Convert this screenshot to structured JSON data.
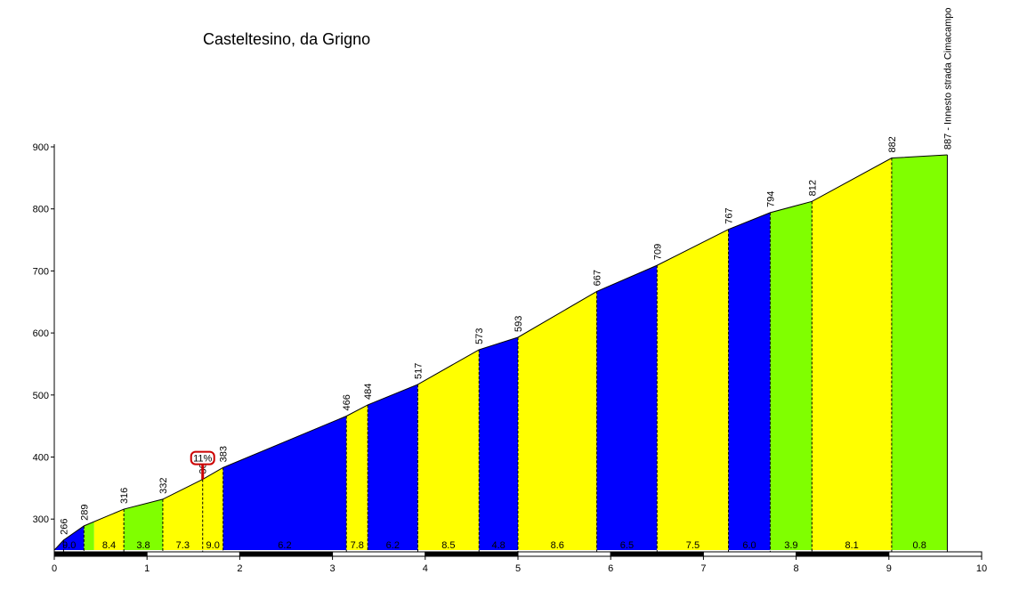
{
  "chart_data": {
    "type": "area",
    "title": "Casteltesino, da Grigno",
    "xlabel": "",
    "ylabel": "",
    "xlim": [
      0,
      10
    ],
    "ylim": [
      250,
      900
    ],
    "x_ticks": [
      "0",
      "1",
      "2",
      "3",
      "4",
      "5",
      "6",
      "7",
      "8",
      "9",
      "10"
    ],
    "y_ticks": [
      "300",
      "400",
      "500",
      "600",
      "700",
      "800",
      "900"
    ],
    "profile_points": [
      {
        "x": 0.0,
        "y": 250
      },
      {
        "x": 0.1,
        "y": 266,
        "label": "266"
      },
      {
        "x": 0.32,
        "y": 289,
        "label": "289"
      },
      {
        "x": 0.75,
        "y": 316,
        "label": "316"
      },
      {
        "x": 1.17,
        "y": 332,
        "label": "332"
      },
      {
        "x": 1.6,
        "y": 364,
        "label": "364"
      },
      {
        "x": 1.82,
        "y": 383,
        "label": "383"
      },
      {
        "x": 3.15,
        "y": 466,
        "label": "466"
      },
      {
        "x": 3.38,
        "y": 484,
        "label": "484"
      },
      {
        "x": 3.92,
        "y": 517,
        "label": "517"
      },
      {
        "x": 4.58,
        "y": 573,
        "label": "573"
      },
      {
        "x": 5.0,
        "y": 593,
        "label": "593"
      },
      {
        "x": 5.85,
        "y": 667,
        "label": "667"
      },
      {
        "x": 6.5,
        "y": 709,
        "label": "709"
      },
      {
        "x": 7.27,
        "y": 767,
        "label": "767"
      },
      {
        "x": 7.72,
        "y": 794,
        "label": "794"
      },
      {
        "x": 8.17,
        "y": 812,
        "label": "812"
      },
      {
        "x": 9.03,
        "y": 882,
        "label": "882"
      },
      {
        "x": 9.63,
        "y": 887,
        "label": "887 - Innesto strada Cimacampo"
      }
    ],
    "segments": [
      {
        "x0": 0.0,
        "x1": 0.32,
        "gradient": "9.0",
        "color": "#0000FF"
      },
      {
        "x0": 0.32,
        "x1": 0.43,
        "gradient": "",
        "color": "#80FF00"
      },
      {
        "x0": 0.43,
        "x1": 0.75,
        "gradient": "8.4",
        "color": "#FFFF00"
      },
      {
        "x0": 0.75,
        "x1": 1.17,
        "gradient": "3.8",
        "color": "#80FF00"
      },
      {
        "x0": 1.17,
        "x1": 1.6,
        "gradient": "7.3",
        "color": "#FFFF00"
      },
      {
        "x0": 1.6,
        "x1": 1.82,
        "gradient": "9.0",
        "color": "#FFFF00"
      },
      {
        "x0": 1.82,
        "x1": 3.15,
        "gradient": "6.2",
        "color": "#0000FF"
      },
      {
        "x0": 3.15,
        "x1": 3.38,
        "gradient": "7.8",
        "color": "#FFFF00"
      },
      {
        "x0": 3.38,
        "x1": 3.92,
        "gradient": "6.2",
        "color": "#0000FF"
      },
      {
        "x0": 3.92,
        "x1": 4.58,
        "gradient": "8.5",
        "color": "#FFFF00"
      },
      {
        "x0": 4.58,
        "x1": 5.0,
        "gradient": "4.8",
        "color": "#0000FF"
      },
      {
        "x0": 5.0,
        "x1": 5.85,
        "gradient": "8.6",
        "color": "#FFFF00"
      },
      {
        "x0": 5.85,
        "x1": 6.5,
        "gradient": "6.5",
        "color": "#0000FF"
      },
      {
        "x0": 6.5,
        "x1": 7.27,
        "gradient": "7.5",
        "color": "#FFFF00"
      },
      {
        "x0": 7.27,
        "x1": 7.72,
        "gradient": "6.0",
        "color": "#0000FF"
      },
      {
        "x0": 7.72,
        "x1": 8.17,
        "gradient": "3.9",
        "color": "#80FF00"
      },
      {
        "x0": 8.17,
        "x1": 9.03,
        "gradient": "8.1",
        "color": "#FFFF00"
      },
      {
        "x0": 9.03,
        "x1": 9.63,
        "gradient": "0.8",
        "color": "#80FF00"
      }
    ],
    "max_gradient_marker": {
      "x": 1.6,
      "y": 364,
      "label": "11%"
    },
    "grid": false,
    "colors": {
      "easy": "#80FF00",
      "medium": "#0000FF",
      "hard": "#FFFF00",
      "marker": "#CC0000"
    }
  }
}
